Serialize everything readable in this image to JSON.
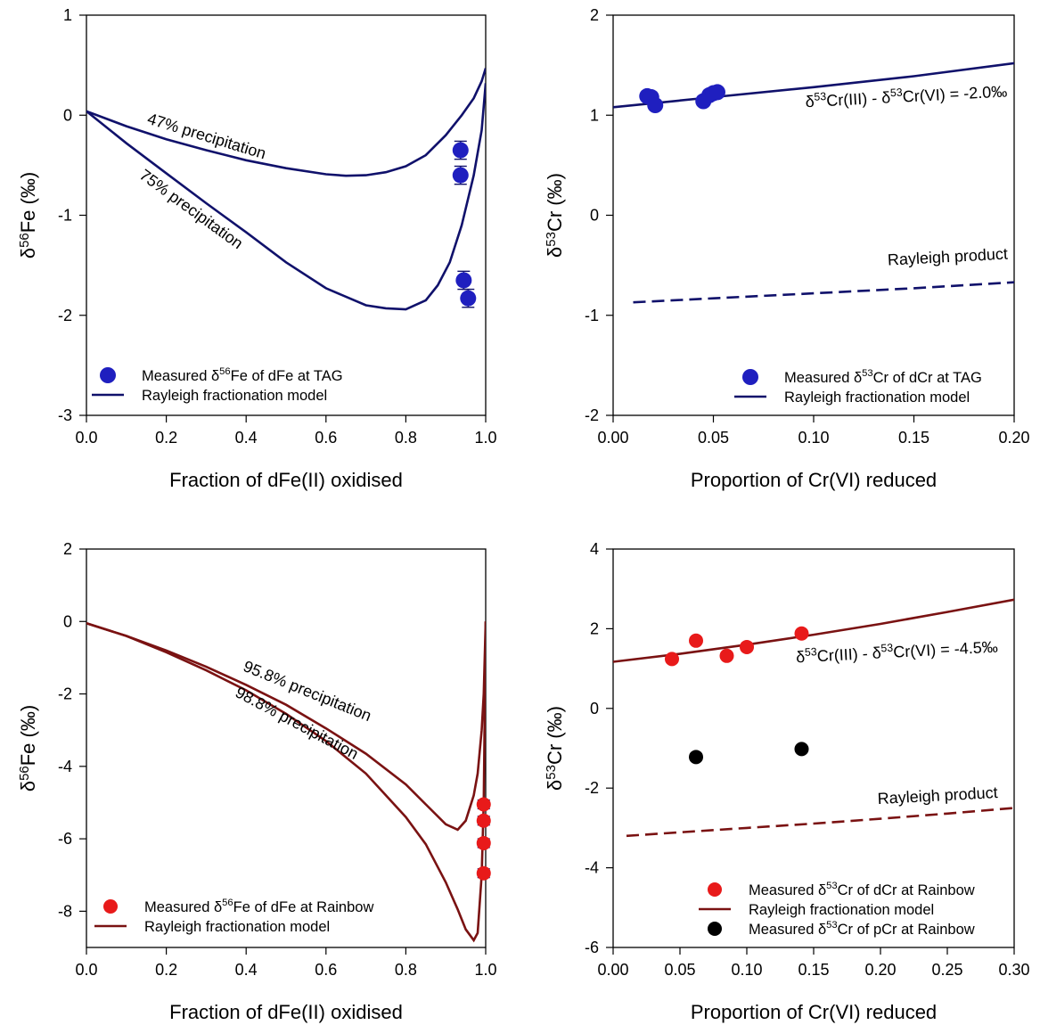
{
  "chart_data": [
    {
      "panel": "top-left",
      "type": "line",
      "title": "",
      "xlabel": "Fraction of dFe(II) oxidised",
      "ylabel": {
        "pre": "δ",
        "sup": "56",
        "post": "Fe (‰)"
      },
      "xlim": [
        0.0,
        1.0
      ],
      "ylim": [
        -3,
        1
      ],
      "xticks": [
        "0.0",
        "0.2",
        "0.4",
        "0.6",
        "0.8",
        "1.0"
      ],
      "yticks": [
        "-3",
        "-2",
        "-1",
        "0",
        "1"
      ],
      "xtick_values": [
        0.0,
        0.2,
        0.4,
        0.6,
        0.8,
        1.0
      ],
      "ytick_values": [
        -3,
        -2,
        -1,
        0,
        1
      ],
      "grid": false,
      "line_color": "#10116b",
      "marker_color": "#1f1fbf",
      "series": [
        {
          "kind": "line",
          "x": [
            0.0,
            0.1,
            0.2,
            0.3,
            0.4,
            0.5,
            0.6,
            0.65,
            0.7,
            0.75,
            0.8,
            0.85,
            0.9,
            0.94,
            0.97,
            0.99,
            1.0
          ],
          "y": [
            0.04,
            -0.11,
            -0.24,
            -0.35,
            -0.45,
            -0.53,
            -0.59,
            -0.605,
            -0.6,
            -0.57,
            -0.51,
            -0.4,
            -0.2,
            0.0,
            0.17,
            0.34,
            0.47
          ]
        },
        {
          "kind": "line",
          "x": [
            0.0,
            0.1,
            0.2,
            0.3,
            0.4,
            0.5,
            0.6,
            0.7,
            0.75,
            0.8,
            0.85,
            0.88,
            0.91,
            0.94,
            0.97,
            0.99,
            1.0
          ],
          "y": [
            0.04,
            -0.28,
            -0.58,
            -0.88,
            -1.17,
            -1.47,
            -1.73,
            -1.9,
            -1.93,
            -1.94,
            -1.85,
            -1.7,
            -1.47,
            -1.1,
            -0.6,
            -0.15,
            0.32
          ]
        },
        {
          "kind": "scatter",
          "x": [
            0.937,
            0.937,
            0.945,
            0.956
          ],
          "y": [
            -0.35,
            -0.6,
            -1.65,
            -1.83
          ],
          "yerr": 0.09
        }
      ],
      "annotations": [
        {
          "text": "47% precipitation",
          "x": 0.15,
          "y": -0.08,
          "rotate": 17
        },
        {
          "text": "75% precipitation",
          "x": 0.13,
          "y": -0.62,
          "rotate": 36
        }
      ],
      "legend": {
        "position": "bottom-left",
        "entries": [
          {
            "kind": "marker",
            "pre": "Measured δ",
            "sup": "56",
            "post": "Fe of dFe at TAG"
          },
          {
            "kind": "line",
            "text": "Rayleigh fractionation model"
          }
        ]
      }
    },
    {
      "panel": "top-right",
      "type": "line",
      "title": "",
      "xlabel": "Proportion of Cr(VI) reduced",
      "ylabel": {
        "pre": "δ",
        "sup": "53",
        "post": "Cr (‰)"
      },
      "xlim": [
        0.0,
        0.2
      ],
      "ylim": [
        -2,
        2
      ],
      "xticks": [
        "0.00",
        "0.05",
        "0.10",
        "0.15",
        "0.20"
      ],
      "yticks": [
        "-2",
        "-1",
        "0",
        "1",
        "2"
      ],
      "xtick_values": [
        0.0,
        0.05,
        0.1,
        0.15,
        0.2
      ],
      "ytick_values": [
        -2,
        -1,
        0,
        1,
        2
      ],
      "grid": false,
      "line_color": "#10116b",
      "marker_color": "#1f1fbf",
      "series": [
        {
          "kind": "line",
          "x": [
            0.0,
            0.05,
            0.1,
            0.15,
            0.2
          ],
          "y": [
            1.08,
            1.18,
            1.28,
            1.39,
            1.52
          ]
        },
        {
          "kind": "dashed",
          "x": [
            0.01,
            0.05,
            0.1,
            0.15,
            0.2
          ],
          "y": [
            -0.87,
            -0.83,
            -0.78,
            -0.73,
            -0.67
          ]
        },
        {
          "kind": "scatter",
          "x": [
            0.017,
            0.019,
            0.021,
            0.045,
            0.048,
            0.05,
            0.052
          ],
          "y": [
            1.19,
            1.18,
            1.1,
            1.14,
            1.2,
            1.22,
            1.23
          ]
        }
      ],
      "annotations": [
        {
          "kind": "sup",
          "parts": [
            "δ",
            "53",
            "Cr(III) - δ",
            "53",
            "Cr(VI) = -2.0‰"
          ],
          "x": 0.096,
          "y": 1.08,
          "rotate": -3
        },
        {
          "text": "Rayleigh product",
          "x": 0.137,
          "y": -0.5,
          "rotate": -3
        }
      ],
      "legend": {
        "position": "bottom-right",
        "entries": [
          {
            "kind": "marker",
            "pre": "Measured δ",
            "sup": "53",
            "post": "Cr of dCr at TAG"
          },
          {
            "kind": "line",
            "text": "Rayleigh fractionation model"
          }
        ]
      }
    },
    {
      "panel": "bottom-left",
      "type": "line",
      "title": "",
      "xlabel": "Fraction of dFe(II) oxidised",
      "ylabel": {
        "pre": "δ",
        "sup": "56",
        "post": "Fe (‰)"
      },
      "xlim": [
        0.0,
        1.0
      ],
      "ylim": [
        -9,
        2
      ],
      "xticks": [
        "0.0",
        "0.2",
        "0.4",
        "0.6",
        "0.8",
        "1.0"
      ],
      "yticks": [
        "-8",
        "-6",
        "-4",
        "-2",
        "0",
        "2"
      ],
      "xtick_values": [
        0.0,
        0.2,
        0.4,
        0.6,
        0.8,
        1.0
      ],
      "ytick_values": [
        -8,
        -6,
        -4,
        -2,
        0,
        2
      ],
      "grid": false,
      "line_color": "#7a1212",
      "marker_color": "#e81a1a",
      "series": [
        {
          "kind": "line",
          "x": [
            0.0,
            0.1,
            0.2,
            0.3,
            0.4,
            0.5,
            0.6,
            0.7,
            0.8,
            0.85,
            0.9,
            0.93,
            0.95,
            0.97,
            0.98,
            0.99,
            0.995,
            1.0
          ],
          "y": [
            -0.05,
            -0.4,
            -0.8,
            -1.25,
            -1.75,
            -2.3,
            -2.95,
            -3.65,
            -4.5,
            -5.05,
            -5.6,
            -5.75,
            -5.5,
            -4.8,
            -4.2,
            -3.0,
            -2.0,
            0.0
          ]
        },
        {
          "kind": "line",
          "x": [
            0.0,
            0.1,
            0.2,
            0.3,
            0.4,
            0.5,
            0.6,
            0.7,
            0.8,
            0.85,
            0.9,
            0.93,
            0.95,
            0.97,
            0.98,
            0.99,
            0.995,
            1.0
          ],
          "y": [
            -0.05,
            -0.4,
            -0.85,
            -1.35,
            -1.9,
            -2.55,
            -3.3,
            -4.2,
            -5.4,
            -6.15,
            -7.2,
            -7.95,
            -8.5,
            -8.8,
            -8.6,
            -7.0,
            -5.0,
            0.0
          ]
        },
        {
          "kind": "scatter",
          "x": [
            0.995,
            0.995,
            0.995,
            0.995
          ],
          "y": [
            -5.05,
            -5.5,
            -6.12,
            -6.95
          ],
          "yerr": 0.12
        }
      ],
      "annotations": [
        {
          "text": "95.8% precipitation",
          "x": 0.39,
          "y": -1.35,
          "rotate": 22
        },
        {
          "text": "98.8% precipitation",
          "x": 0.37,
          "y": -2.05,
          "rotate": 28
        }
      ],
      "legend": {
        "position": "bottom-left",
        "entries": [
          {
            "kind": "marker",
            "pre": "Measured δ",
            "sup": "56",
            "post": "Fe of dFe at Rainbow"
          },
          {
            "kind": "line",
            "text": "Rayleigh fractionation model"
          }
        ]
      }
    },
    {
      "panel": "bottom-right",
      "type": "line",
      "title": "",
      "xlabel": "Proportion of Cr(VI) reduced",
      "ylabel": {
        "pre": "δ",
        "sup": "53",
        "post": "Cr (‰)"
      },
      "xlim": [
        0.0,
        0.3
      ],
      "ylim": [
        -6,
        4
      ],
      "xticks": [
        "0.00",
        "0.05",
        "0.10",
        "0.15",
        "0.20",
        "0.25",
        "0.30"
      ],
      "yticks": [
        "-6",
        "-4",
        "-2",
        "0",
        "2",
        "4"
      ],
      "xtick_values": [
        0.0,
        0.05,
        0.1,
        0.15,
        0.2,
        0.25,
        0.3
      ],
      "ytick_values": [
        -6,
        -4,
        -2,
        0,
        2,
        4
      ],
      "grid": false,
      "line_color": "#7a1212",
      "marker_color": "#e81a1a",
      "series": [
        {
          "kind": "line",
          "x": [
            0.0,
            0.05,
            0.1,
            0.15,
            0.2,
            0.25,
            0.3
          ],
          "y": [
            1.17,
            1.37,
            1.6,
            1.85,
            2.12,
            2.42,
            2.73
          ]
        },
        {
          "kind": "dashed",
          "x": [
            0.01,
            0.05,
            0.1,
            0.15,
            0.2,
            0.25,
            0.3
          ],
          "y": [
            -3.2,
            -3.11,
            -3.0,
            -2.89,
            -2.77,
            -2.64,
            -2.5
          ]
        },
        {
          "kind": "scatter",
          "x": [
            0.044,
            0.062,
            0.085,
            0.1,
            0.141
          ],
          "y": [
            1.24,
            1.7,
            1.32,
            1.54,
            1.88
          ]
        },
        {
          "kind": "scatter-black",
          "x": [
            0.062,
            0.141
          ],
          "y": [
            -1.22,
            -1.02
          ]
        }
      ],
      "annotations": [
        {
          "kind": "sup",
          "parts": [
            "δ",
            "53",
            "Cr(III) - δ",
            "53",
            "Cr(VI) = -4.5‰"
          ],
          "x": 0.137,
          "y": 1.15,
          "rotate": -3
        },
        {
          "text": "Rayleigh product",
          "x": 0.198,
          "y": -2.4,
          "rotate": -3
        }
      ],
      "legend": {
        "position": "bottom-right",
        "entries": [
          {
            "kind": "marker",
            "pre": "Measured δ",
            "sup": "53",
            "post": "Cr of dCr at Rainbow"
          },
          {
            "kind": "line",
            "text": "Rayleigh fractionation model"
          },
          {
            "kind": "marker-black",
            "pre": "Measured δ",
            "sup": "53",
            "post": "Cr of pCr at Rainbow"
          }
        ]
      }
    }
  ]
}
